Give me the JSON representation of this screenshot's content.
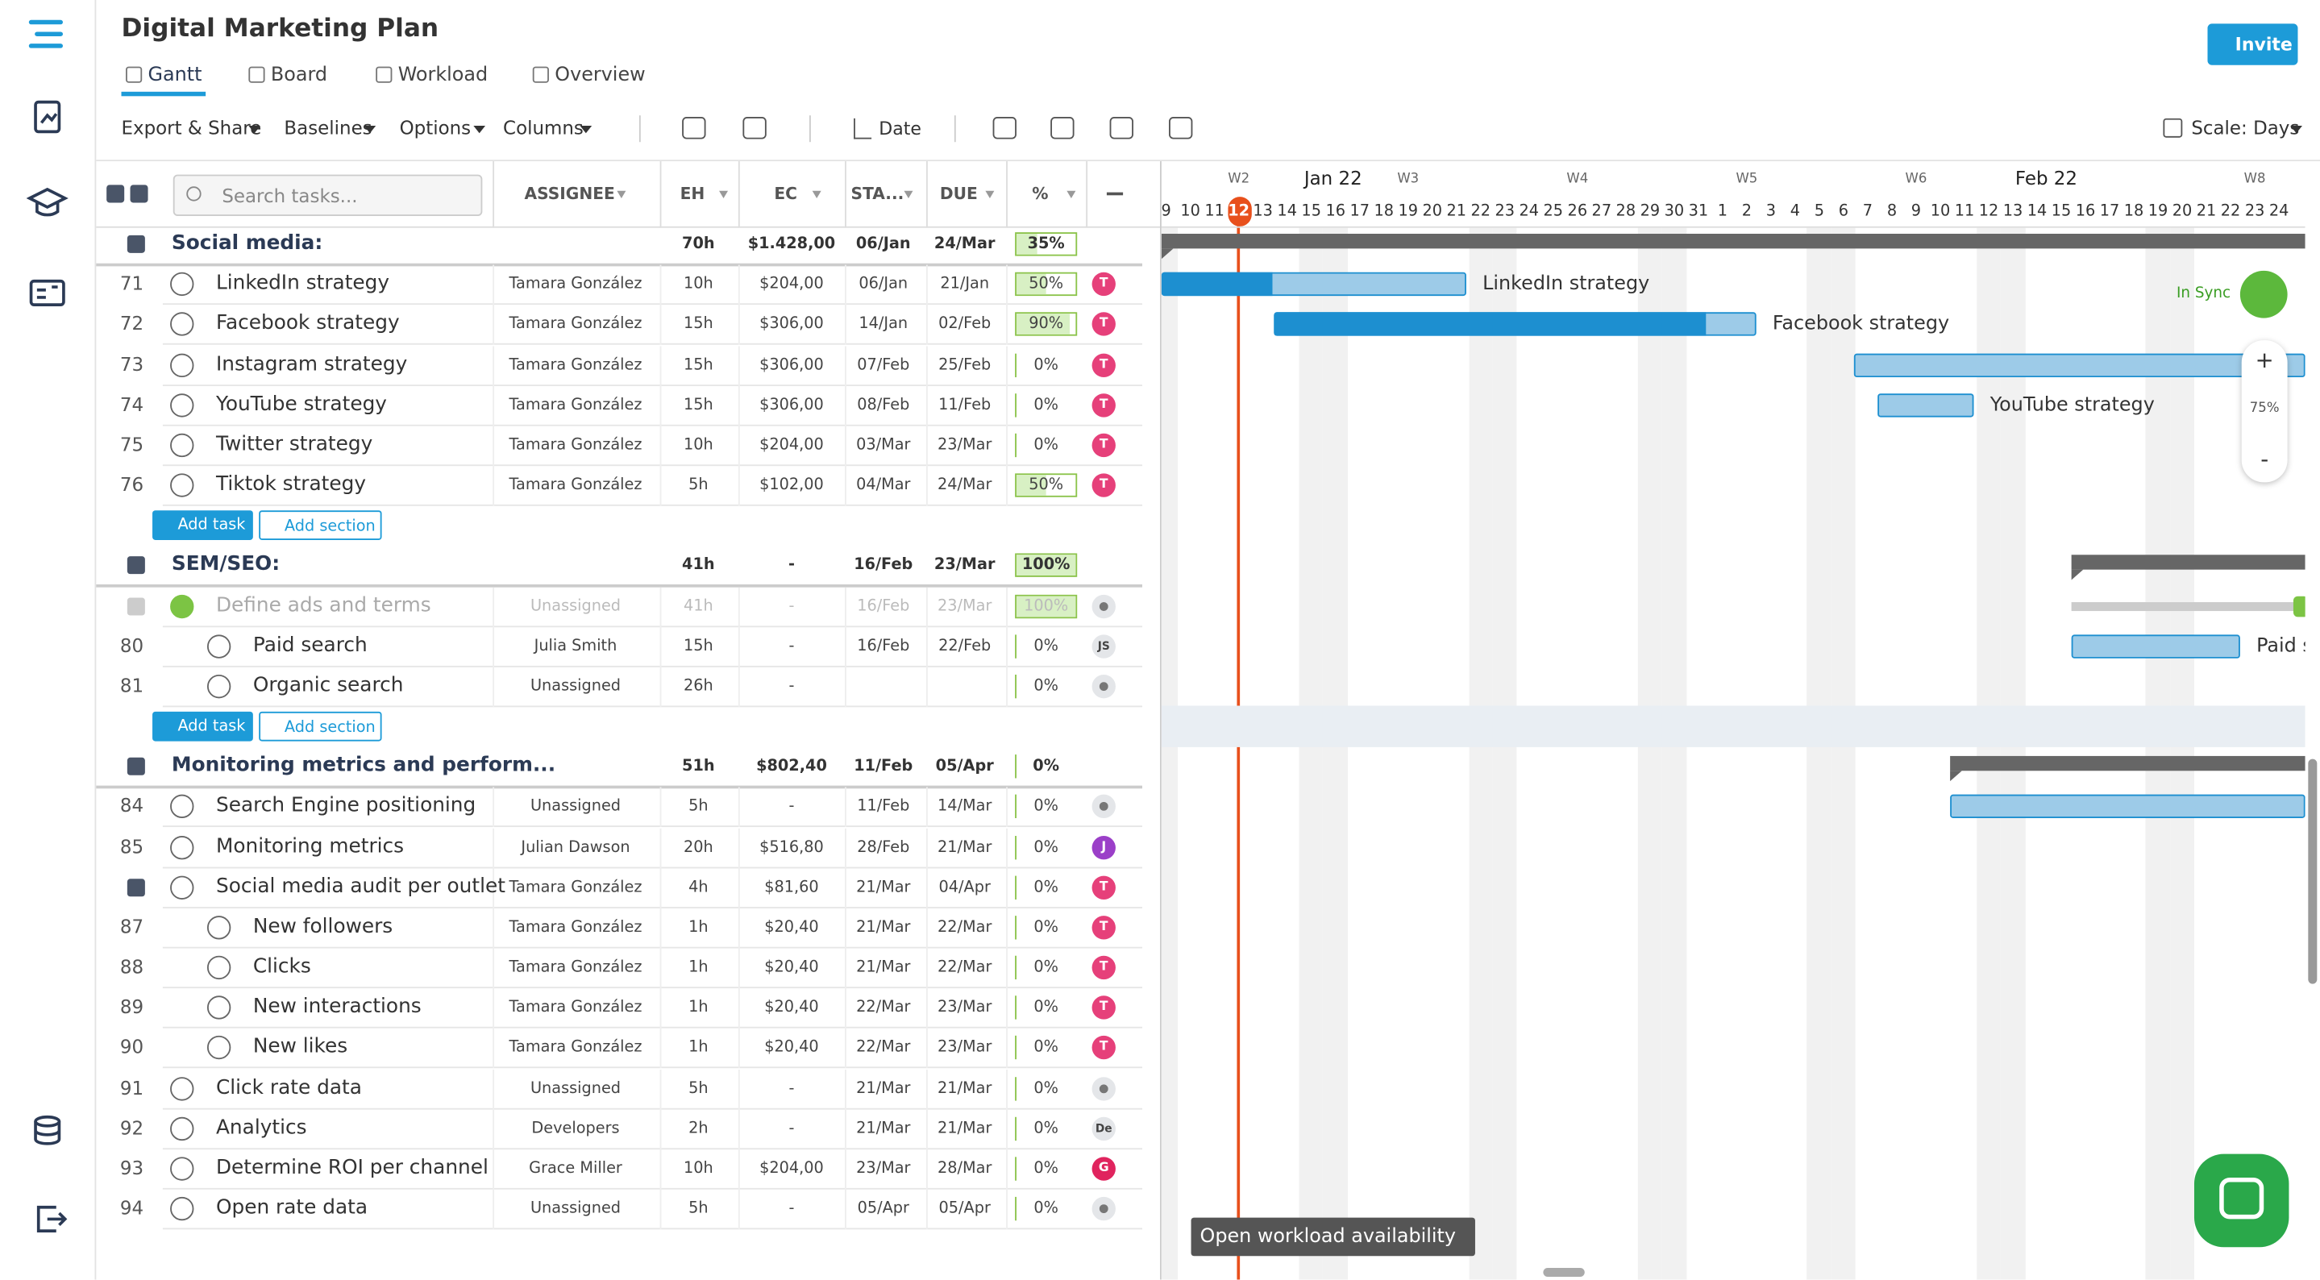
{
  "app": {
    "title": "Digital Marketing Plan",
    "invite": "Invite"
  },
  "tabs": [
    "Gantt",
    "Board",
    "Workload",
    "Overview"
  ],
  "toolbar": {
    "menus": [
      "Export & Share",
      "Baselines",
      "Options",
      "Columns"
    ],
    "sort": "Date",
    "scale": "Scale: Days"
  },
  "table": {
    "search_placeholder": "Search tasks...",
    "columns": [
      "ASSIGNEE",
      "EH",
      "EC",
      "STA...",
      "DUE",
      "%"
    ],
    "add_task": "Add task",
    "add_section": "Add section",
    "sections": [
      {
        "name": "Social media:",
        "eh": "70h",
        "ec": "$1.428,00",
        "start": "06/Jan",
        "due": "24/Mar",
        "pct": "35%",
        "tasks": [
          {
            "id": "71",
            "name": "LinkedIn strategy",
            "assignee": "Tamara González",
            "eh": "10h",
            "ec": "$204,00",
            "start": "06/Jan",
            "due": "21/Jan",
            "pct": "50%",
            "avatar": {
              "initials": "T",
              "color": "#e6407a"
            }
          },
          {
            "id": "72",
            "name": "Facebook strategy",
            "assignee": "Tamara González",
            "eh": "15h",
            "ec": "$306,00",
            "start": "14/Jan",
            "due": "02/Feb",
            "pct": "90%",
            "avatar": {
              "initials": "T",
              "color": "#e6407a"
            }
          },
          {
            "id": "73",
            "name": "Instagram strategy",
            "assignee": "Tamara González",
            "eh": "15h",
            "ec": "$306,00",
            "start": "07/Feb",
            "due": "25/Feb",
            "pct": "0%",
            "avatar": {
              "initials": "T",
              "color": "#e6407a"
            }
          },
          {
            "id": "74",
            "name": "YouTube strategy",
            "assignee": "Tamara González",
            "eh": "15h",
            "ec": "$306,00",
            "start": "08/Feb",
            "due": "11/Feb",
            "pct": "0%",
            "avatar": {
              "initials": "T",
              "color": "#e6407a"
            }
          },
          {
            "id": "75",
            "name": "Twitter strategy",
            "assignee": "Tamara González",
            "eh": "10h",
            "ec": "$204,00",
            "start": "03/Mar",
            "due": "23/Mar",
            "pct": "0%",
            "avatar": {
              "initials": "T",
              "color": "#e6407a"
            }
          },
          {
            "id": "76",
            "name": "Tiktok strategy",
            "assignee": "Tamara González",
            "eh": "5h",
            "ec": "$102,00",
            "start": "04/Mar",
            "due": "24/Mar",
            "pct": "50%",
            "avatar": {
              "initials": "T",
              "color": "#e6407a"
            }
          }
        ]
      },
      {
        "name": "SEM/SEO:",
        "eh": "41h",
        "ec": "-",
        "start": "16/Feb",
        "due": "23/Mar",
        "pct": "100%",
        "tasks": [
          {
            "name": "Define ads and terms",
            "assignee": "Unassigned",
            "eh": "41h",
            "ec": "-",
            "start": "16/Feb",
            "due": "23/Mar",
            "pct": "100%",
            "subtasks": [
              {
                "id": "80",
                "name": "Paid search",
                "assignee": "Julia Smith",
                "eh": "15h",
                "ec": "-",
                "start": "16/Feb",
                "due": "22/Feb",
                "pct": "0%",
                "avatar": {
                  "initials": "JS",
                  "color": "#e4e6e9"
                }
              },
              {
                "id": "81",
                "name": "Organic search",
                "assignee": "Unassigned",
                "eh": "26h",
                "ec": "-",
                "pct": "0%"
              }
            ]
          }
        ]
      },
      {
        "name": "Monitoring metrics and perform...",
        "eh": "51h",
        "ec": "$802,40",
        "start": "11/Feb",
        "due": "05/Apr",
        "pct": "0%",
        "tasks": [
          {
            "id": "84",
            "name": "Search Engine positioning",
            "assignee": "Unassigned",
            "eh": "5h",
            "ec": "-",
            "start": "11/Feb",
            "due": "14/Mar",
            "pct": "0%"
          },
          {
            "id": "85",
            "name": "Monitoring metrics",
            "assignee": "Julian Dawson",
            "eh": "20h",
            "ec": "$516,80",
            "start": "28/Feb",
            "due": "21/Mar",
            "pct": "0%",
            "avatar": {
              "initials": "J",
              "color": "#9b3fc8"
            }
          },
          {
            "name": "Social media audit per outlet",
            "assignee": "Tamara González",
            "eh": "4h",
            "ec": "$81,60",
            "start": "21/Mar",
            "due": "04/Apr",
            "pct": "0%",
            "avatar": {
              "initials": "T",
              "color": "#e6407a"
            },
            "subtasks": [
              {
                "id": "87",
                "name": "New followers",
                "assignee": "Tamara González",
                "eh": "1h",
                "ec": "$20,40",
                "start": "21/Mar",
                "due": "22/Mar",
                "pct": "0%",
                "avatar": {
                  "initials": "T",
                  "color": "#e6407a"
                }
              },
              {
                "id": "88",
                "name": "Clicks",
                "assignee": "Tamara González",
                "eh": "1h",
                "ec": "$20,40",
                "start": "21/Mar",
                "due": "22/Mar",
                "pct": "0%",
                "avatar": {
                  "initials": "T",
                  "color": "#e6407a"
                }
              },
              {
                "id": "89",
                "name": "New interactions",
                "assignee": "Tamara González",
                "eh": "1h",
                "ec": "$20,40",
                "start": "22/Mar",
                "due": "23/Mar",
                "pct": "0%",
                "avatar": {
                  "initials": "T",
                  "color": "#e6407a"
                }
              },
              {
                "id": "90",
                "name": "New likes",
                "assignee": "Tamara González",
                "eh": "1h",
                "ec": "$20,40",
                "start": "22/Mar",
                "due": "23/Mar",
                "pct": "0%",
                "avatar": {
                  "initials": "T",
                  "color": "#e6407a"
                }
              }
            ]
          },
          {
            "id": "91",
            "name": "Click rate data",
            "assignee": "Unassigned",
            "eh": "5h",
            "ec": "-",
            "start": "21/Mar",
            "due": "21/Mar",
            "pct": "0%"
          },
          {
            "id": "92",
            "name": "Analytics",
            "assignee": "Developers",
            "eh": "2h",
            "ec": "-",
            "start": "21/Mar",
            "due": "21/Mar",
            "pct": "0%",
            "avatar": {
              "initials": "De",
              "color": "#e4e6e9"
            }
          },
          {
            "id": "93",
            "name": "Determine ROI per channel",
            "assignee": "Grace Miller",
            "eh": "10h",
            "ec": "$204,00",
            "start": "23/Mar",
            "due": "28/Mar",
            "pct": "0%",
            "avatar": {
              "initials": "G",
              "color": "#e0245e"
            }
          },
          {
            "id": "94",
            "name": "Open rate data",
            "assignee": "Unassigned",
            "eh": "5h",
            "ec": "-",
            "start": "05/Apr",
            "due": "05/Apr",
            "pct": "0%"
          }
        ]
      }
    ]
  },
  "gantt": {
    "months": [
      "Jan 22",
      "Feb 22"
    ],
    "weeks": [
      "W2",
      "W3",
      "W4",
      "W5",
      "W6",
      "W8"
    ],
    "days": [
      "9",
      "10",
      "11",
      "12",
      "13",
      "14",
      "15",
      "16",
      "17",
      "18",
      "19",
      "20",
      "21",
      "22",
      "23",
      "24",
      "25",
      "26",
      "27",
      "28",
      "29",
      "30",
      "31",
      "1",
      "2",
      "3",
      "4",
      "5",
      "6",
      "7",
      "8",
      "9",
      "10",
      "11",
      "12",
      "13",
      "14",
      "15",
      "16",
      "17",
      "18",
      "19",
      "20",
      "21",
      "22",
      "23",
      "24"
    ],
    "sync": "In Sync",
    "zoom": "75%",
    "zoom_in": "+",
    "zoom_out": "-",
    "workload": "Open workload availability"
  }
}
